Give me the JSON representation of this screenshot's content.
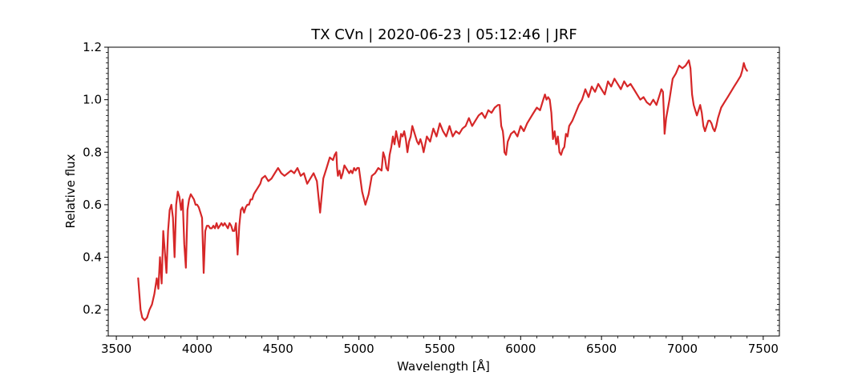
{
  "chart_data": {
    "type": "line",
    "title": "TX CVn | 2020-06-23 | 05:12:46 | JRF",
    "xlabel": "Wavelength [Å]",
    "ylabel": "Relative flux",
    "xlim": [
      3450,
      7600
    ],
    "ylim": [
      0.1,
      1.2
    ],
    "xticks": [
      3500,
      4000,
      4500,
      5000,
      5500,
      6000,
      6500,
      7000,
      7500
    ],
    "yticks": [
      0.2,
      0.4,
      0.6,
      0.8,
      1.0,
      1.2
    ],
    "ytick_labels": [
      "0.2",
      "0.4",
      "0.6",
      "0.8",
      "1.0",
      "1.2"
    ],
    "grid": false,
    "series": [
      {
        "color": "#d62728",
        "x": [
          3635,
          3650,
          3660,
          3675,
          3690,
          3705,
          3720,
          3735,
          3750,
          3760,
          3770,
          3780,
          3790,
          3800,
          3810,
          3820,
          3830,
          3840,
          3850,
          3860,
          3870,
          3880,
          3890,
          3900,
          3910,
          3920,
          3930,
          3940,
          3950,
          3960,
          3970,
          3980,
          3990,
          4000,
          4010,
          4020,
          4030,
          4040,
          4050,
          4060,
          4070,
          4080,
          4090,
          4100,
          4110,
          4120,
          4130,
          4140,
          4150,
          4160,
          4170,
          4180,
          4190,
          4200,
          4210,
          4220,
          4230,
          4240,
          4250,
          4260,
          4270,
          4280,
          4290,
          4300,
          4310,
          4320,
          4330,
          4340,
          4350,
          4360,
          4370,
          4380,
          4390,
          4400,
          4420,
          4440,
          4460,
          4480,
          4500,
          4520,
          4540,
          4560,
          4580,
          4600,
          4620,
          4640,
          4660,
          4680,
          4700,
          4720,
          4740,
          4760,
          4780,
          4800,
          4820,
          4840,
          4850,
          4860,
          4865,
          4870,
          4880,
          4890,
          4900,
          4910,
          4920,
          4930,
          4940,
          4950,
          4960,
          4970,
          4980,
          4990,
          5000,
          5020,
          5040,
          5060,
          5080,
          5100,
          5120,
          5140,
          5150,
          5160,
          5170,
          5180,
          5190,
          5200,
          5210,
          5220,
          5230,
          5240,
          5250,
          5260,
          5270,
          5280,
          5290,
          5300,
          5310,
          5320,
          5330,
          5340,
          5350,
          5360,
          5370,
          5380,
          5390,
          5400,
          5420,
          5440,
          5460,
          5480,
          5500,
          5520,
          5540,
          5560,
          5580,
          5600,
          5620,
          5640,
          5660,
          5680,
          5700,
          5720,
          5740,
          5760,
          5780,
          5800,
          5820,
          5840,
          5860,
          5870,
          5880,
          5890,
          5895,
          5900,
          5910,
          5920,
          5940,
          5960,
          5980,
          6000,
          6020,
          6040,
          6060,
          6080,
          6100,
          6120,
          6140,
          6150,
          6160,
          6170,
          6180,
          6190,
          6200,
          6210,
          6220,
          6230,
          6240,
          6250,
          6260,
          6270,
          6280,
          6290,
          6300,
          6320,
          6340,
          6360,
          6380,
          6400,
          6420,
          6440,
          6460,
          6480,
          6500,
          6520,
          6540,
          6560,
          6580,
          6600,
          6620,
          6640,
          6660,
          6680,
          6700,
          6720,
          6740,
          6760,
          6780,
          6800,
          6820,
          6840,
          6860,
          6870,
          6880,
          6885,
          6890,
          6900,
          6920,
          6940,
          6960,
          6980,
          7000,
          7020,
          7040,
          7050,
          7060,
          7070,
          7080,
          7090,
          7100,
          7110,
          7120,
          7130,
          7140,
          7150,
          7160,
          7170,
          7180,
          7190,
          7200,
          7210,
          7220,
          7240,
          7260,
          7280,
          7300,
          7320,
          7340,
          7360,
          7370,
          7380,
          7390,
          7400
        ],
        "y": [
          0.32,
          0.2,
          0.17,
          0.16,
          0.17,
          0.2,
          0.22,
          0.26,
          0.32,
          0.28,
          0.4,
          0.3,
          0.5,
          0.42,
          0.34,
          0.5,
          0.58,
          0.6,
          0.55,
          0.4,
          0.6,
          0.65,
          0.63,
          0.58,
          0.62,
          0.45,
          0.36,
          0.58,
          0.62,
          0.64,
          0.63,
          0.62,
          0.6,
          0.6,
          0.59,
          0.57,
          0.55,
          0.34,
          0.5,
          0.52,
          0.52,
          0.51,
          0.51,
          0.52,
          0.51,
          0.53,
          0.51,
          0.52,
          0.53,
          0.52,
          0.53,
          0.52,
          0.51,
          0.53,
          0.52,
          0.5,
          0.5,
          0.53,
          0.41,
          0.52,
          0.58,
          0.59,
          0.57,
          0.59,
          0.6,
          0.6,
          0.62,
          0.62,
          0.64,
          0.65,
          0.66,
          0.67,
          0.68,
          0.7,
          0.71,
          0.69,
          0.7,
          0.72,
          0.74,
          0.72,
          0.71,
          0.72,
          0.73,
          0.72,
          0.74,
          0.71,
          0.72,
          0.68,
          0.7,
          0.72,
          0.69,
          0.57,
          0.7,
          0.74,
          0.78,
          0.77,
          0.79,
          0.8,
          0.74,
          0.71,
          0.73,
          0.7,
          0.72,
          0.75,
          0.74,
          0.73,
          0.72,
          0.73,
          0.72,
          0.74,
          0.73,
          0.74,
          0.74,
          0.65,
          0.6,
          0.64,
          0.71,
          0.72,
          0.74,
          0.73,
          0.8,
          0.78,
          0.74,
          0.73,
          0.79,
          0.82,
          0.86,
          0.83,
          0.88,
          0.85,
          0.82,
          0.87,
          0.86,
          0.88,
          0.85,
          0.8,
          0.84,
          0.86,
          0.9,
          0.88,
          0.86,
          0.84,
          0.83,
          0.85,
          0.83,
          0.8,
          0.86,
          0.84,
          0.89,
          0.86,
          0.91,
          0.88,
          0.86,
          0.9,
          0.86,
          0.88,
          0.87,
          0.89,
          0.9,
          0.93,
          0.9,
          0.92,
          0.94,
          0.95,
          0.93,
          0.96,
          0.95,
          0.97,
          0.98,
          0.98,
          0.9,
          0.88,
          0.85,
          0.8,
          0.79,
          0.84,
          0.87,
          0.88,
          0.86,
          0.9,
          0.88,
          0.91,
          0.93,
          0.95,
          0.97,
          0.96,
          1.0,
          1.02,
          1.0,
          1.01,
          1.0,
          0.95,
          0.85,
          0.88,
          0.83,
          0.86,
          0.8,
          0.79,
          0.81,
          0.82,
          0.87,
          0.86,
          0.9,
          0.92,
          0.95,
          0.98,
          1.0,
          1.04,
          1.01,
          1.05,
          1.03,
          1.06,
          1.04,
          1.02,
          1.07,
          1.05,
          1.08,
          1.06,
          1.04,
          1.07,
          1.05,
          1.06,
          1.04,
          1.02,
          1.0,
          1.01,
          0.99,
          0.98,
          1.0,
          0.98,
          1.02,
          1.04,
          1.03,
          0.96,
          0.87,
          0.93,
          1.0,
          1.08,
          1.1,
          1.13,
          1.12,
          1.13,
          1.15,
          1.12,
          1.02,
          0.98,
          0.96,
          0.94,
          0.96,
          0.98,
          0.95,
          0.9,
          0.88,
          0.9,
          0.92,
          0.92,
          0.91,
          0.89,
          0.88,
          0.9,
          0.93,
          0.97,
          0.99,
          1.01,
          1.03,
          1.05,
          1.07,
          1.09,
          1.11,
          1.14,
          1.12,
          1.11
        ]
      }
    ]
  }
}
